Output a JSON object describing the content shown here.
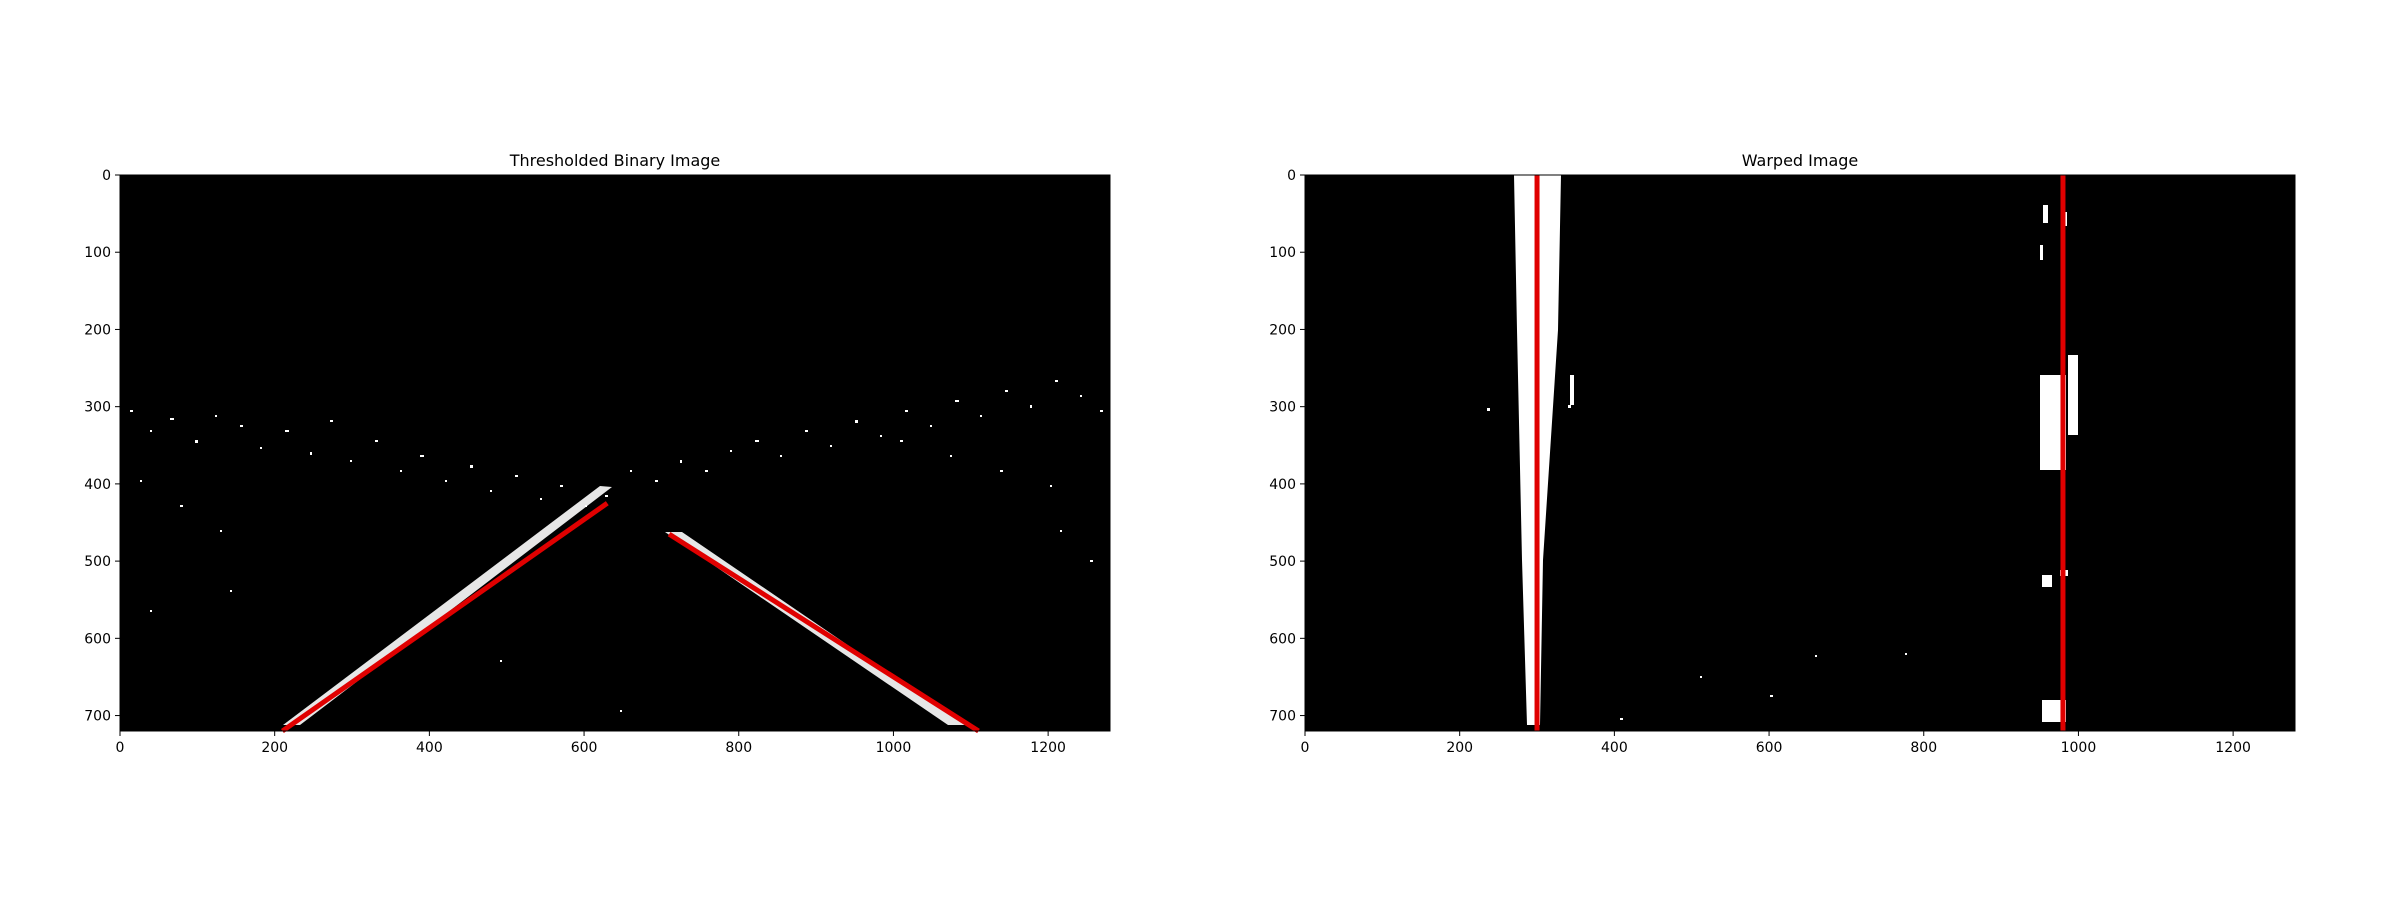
{
  "figure": {
    "background": "#ffffff",
    "panel_background": "#000000",
    "lane_color": "#e00000",
    "feature_color": "#ffffff"
  },
  "chart_data": [
    {
      "type": "image",
      "title": "Thresholded Binary Image",
      "xlabel": "",
      "ylabel": "",
      "xlim": [
        0,
        1280
      ],
      "ylim": [
        720,
        0
      ],
      "x_ticks": [
        0,
        200,
        400,
        600,
        800,
        1000,
        1200
      ],
      "y_ticks": [
        0,
        100,
        200,
        300,
        400,
        500,
        600,
        700
      ],
      "grid": false,
      "lines": [
        {
          "x": [
            210,
            630
          ],
          "y": [
            720,
            425
          ]
        },
        {
          "x": [
            710,
            1110
          ],
          "y": [
            465,
            720
          ]
        }
      ]
    },
    {
      "type": "image",
      "title": "Warped Image",
      "xlabel": "",
      "ylabel": "",
      "xlim": [
        0,
        1280
      ],
      "ylim": [
        720,
        0
      ],
      "x_ticks": [
        0,
        200,
        400,
        600,
        800,
        1000,
        1200
      ],
      "y_ticks": [
        0,
        100,
        200,
        300,
        400,
        500,
        600,
        700
      ],
      "grid": false,
      "lines": [
        {
          "x": [
            300,
            300
          ],
          "y": [
            0,
            720
          ]
        },
        {
          "x": [
            980,
            980
          ],
          "y": [
            0,
            720
          ]
        }
      ]
    }
  ]
}
